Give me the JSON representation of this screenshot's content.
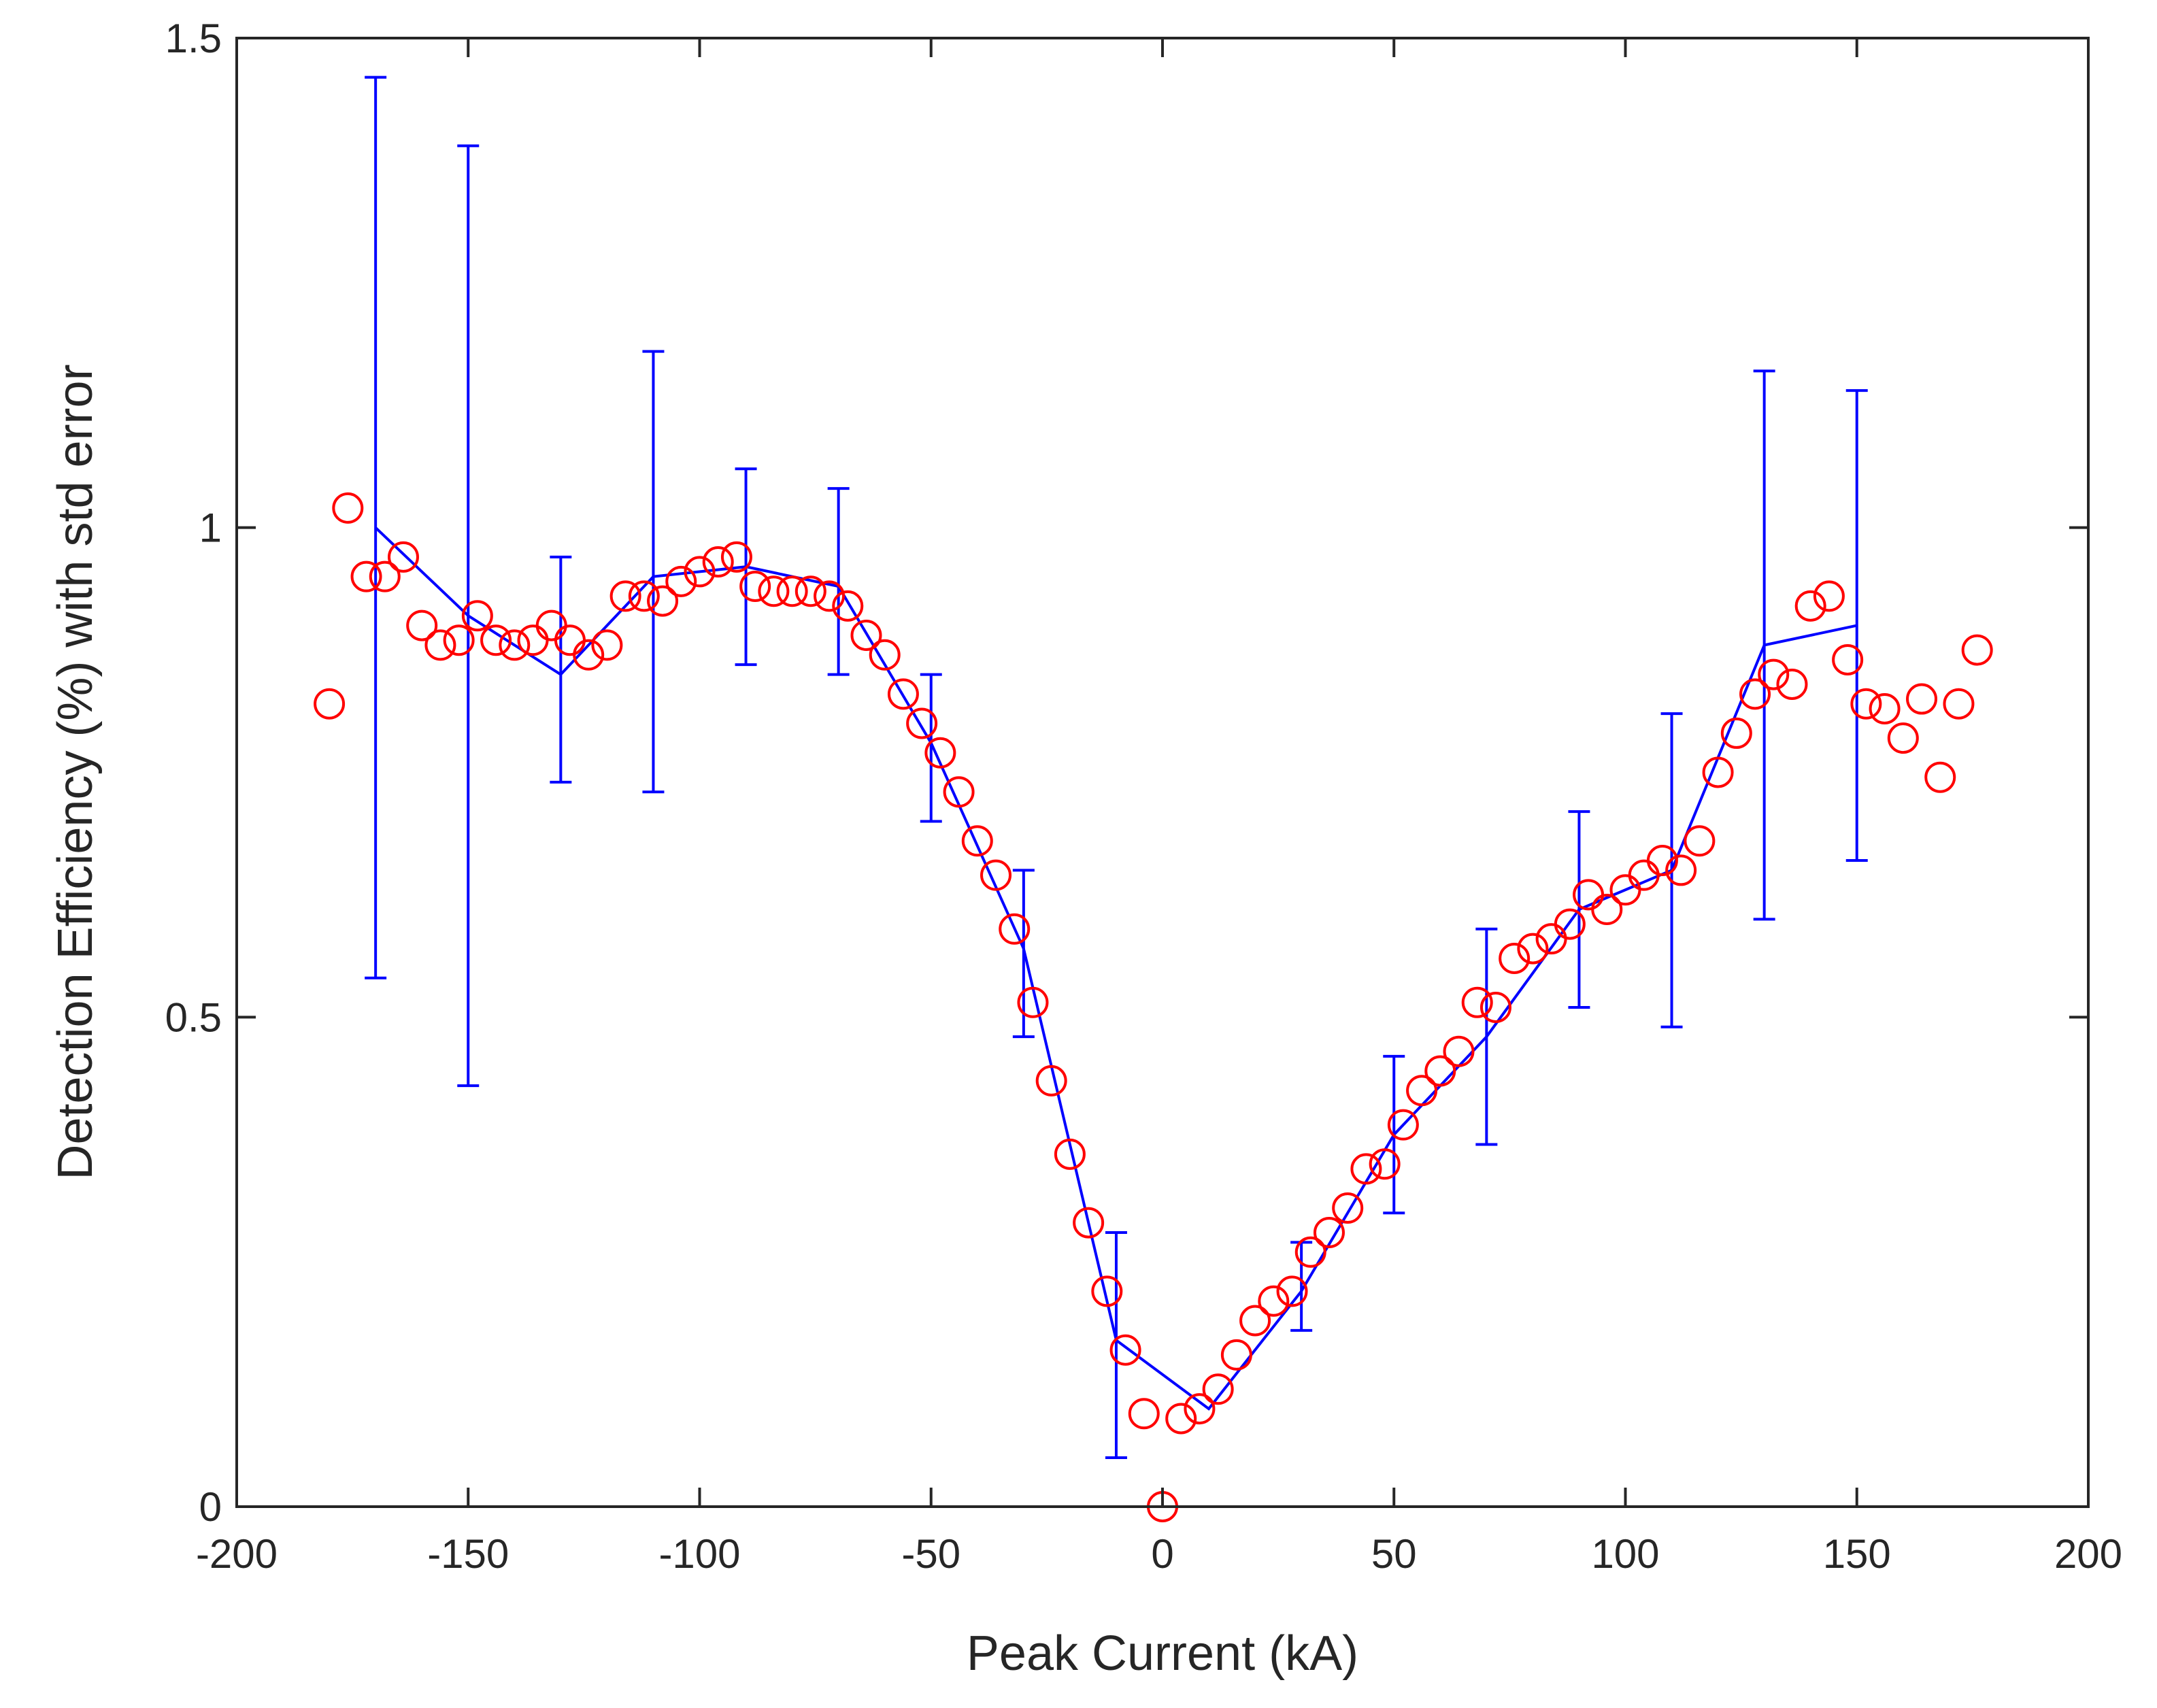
{
  "chart_data": {
    "type": "scatter",
    "xlabel": "Peak Current (kA)",
    "ylabel": "Detection Efficiency (%) with std error",
    "xlim": [
      -200,
      200
    ],
    "ylim": [
      0,
      1.5
    ],
    "xticks": [
      -200,
      -150,
      -100,
      -50,
      0,
      50,
      100,
      150,
      200
    ],
    "xtick_labels": [
      "-200",
      "-150",
      "-100",
      "-50",
      "0",
      "50",
      "100",
      "150",
      "200"
    ],
    "yticks": [
      0,
      0.5,
      1,
      1.5
    ],
    "ytick_labels": [
      "0",
      "0.5",
      "1",
      "1.5"
    ],
    "grid": false,
    "legend": "none",
    "series": [
      {
        "kind": "markers",
        "marker": "circle",
        "color": "#ff0000",
        "points": [
          [
            -180,
            0.82
          ],
          [
            -176,
            1.02
          ],
          [
            -172,
            0.95
          ],
          [
            -168,
            0.95
          ],
          [
            -164,
            0.97
          ],
          [
            -160,
            0.9
          ],
          [
            -156,
            0.88
          ],
          [
            -152,
            0.885
          ],
          [
            -148,
            0.91
          ],
          [
            -144,
            0.885
          ],
          [
            -140,
            0.88
          ],
          [
            -136,
            0.885
          ],
          [
            -132,
            0.9
          ],
          [
            -128,
            0.885
          ],
          [
            -124,
            0.87
          ],
          [
            -120,
            0.88
          ],
          [
            -116,
            0.93
          ],
          [
            -112,
            0.93
          ],
          [
            -108,
            0.925
          ],
          [
            -104,
            0.945
          ],
          [
            -100,
            0.955
          ],
          [
            -96,
            0.965
          ],
          [
            -92,
            0.97
          ],
          [
            -88,
            0.94
          ],
          [
            -84,
            0.935
          ],
          [
            -80,
            0.935
          ],
          [
            -76,
            0.935
          ],
          [
            -72,
            0.93
          ],
          [
            -68,
            0.92
          ],
          [
            -64,
            0.89
          ],
          [
            -60,
            0.87
          ],
          [
            -56,
            0.83
          ],
          [
            -52,
            0.8
          ],
          [
            -48,
            0.77
          ],
          [
            -44,
            0.73
          ],
          [
            -40,
            0.68
          ],
          [
            -36,
            0.645
          ],
          [
            -32,
            0.59
          ],
          [
            -28,
            0.515
          ],
          [
            -24,
            0.435
          ],
          [
            -20,
            0.36
          ],
          [
            -16,
            0.29
          ],
          [
            -12,
            0.22
          ],
          [
            -8,
            0.16
          ],
          [
            -4,
            0.095
          ],
          [
            0,
            0.0
          ],
          [
            4,
            0.09
          ],
          [
            8,
            0.1
          ],
          [
            12,
            0.12
          ],
          [
            16,
            0.155
          ],
          [
            20,
            0.19
          ],
          [
            24,
            0.21
          ],
          [
            28,
            0.22
          ],
          [
            32,
            0.26
          ],
          [
            36,
            0.28
          ],
          [
            40,
            0.305
          ],
          [
            44,
            0.345
          ],
          [
            48,
            0.35
          ],
          [
            52,
            0.39
          ],
          [
            56,
            0.425
          ],
          [
            60,
            0.445
          ],
          [
            64,
            0.465
          ],
          [
            68,
            0.515
          ],
          [
            72,
            0.51
          ],
          [
            76,
            0.56
          ],
          [
            80,
            0.57
          ],
          [
            84,
            0.58
          ],
          [
            88,
            0.595
          ],
          [
            92,
            0.625
          ],
          [
            96,
            0.61
          ],
          [
            100,
            0.63
          ],
          [
            104,
            0.645
          ],
          [
            108,
            0.66
          ],
          [
            112,
            0.65
          ],
          [
            116,
            0.68
          ],
          [
            120,
            0.75
          ],
          [
            124,
            0.79
          ],
          [
            128,
            0.83
          ],
          [
            132,
            0.85
          ],
          [
            136,
            0.84
          ],
          [
            140,
            0.92
          ],
          [
            144,
            0.93
          ],
          [
            148,
            0.865
          ],
          [
            152,
            0.82
          ],
          [
            156,
            0.815
          ],
          [
            160,
            0.785
          ],
          [
            164,
            0.825
          ],
          [
            168,
            0.745
          ],
          [
            172,
            0.82
          ],
          [
            176,
            0.875
          ]
        ]
      },
      {
        "kind": "line_errorbar",
        "color": "#0000ff",
        "x": [
          -170,
          -150,
          -130,
          -110,
          -90,
          -70,
          -50,
          -30,
          -10,
          10,
          30,
          50,
          70,
          90,
          110,
          130,
          150
        ],
        "y": [
          1.0,
          0.91,
          0.85,
          0.95,
          0.96,
          0.94,
          0.78,
          0.57,
          0.17,
          0.1,
          0.22,
          0.38,
          0.48,
          0.61,
          0.65,
          0.88,
          0.9
        ],
        "lower": [
          0.54,
          0.43,
          0.74,
          0.73,
          0.86,
          0.85,
          0.7,
          0.48,
          0.05,
          null,
          0.18,
          0.3,
          0.37,
          0.51,
          0.49,
          0.6,
          0.66
        ],
        "upper": [
          1.46,
          1.39,
          0.97,
          1.18,
          1.06,
          1.04,
          0.85,
          0.65,
          0.28,
          null,
          0.27,
          0.46,
          0.59,
          0.71,
          0.81,
          1.16,
          1.14
        ]
      }
    ]
  }
}
